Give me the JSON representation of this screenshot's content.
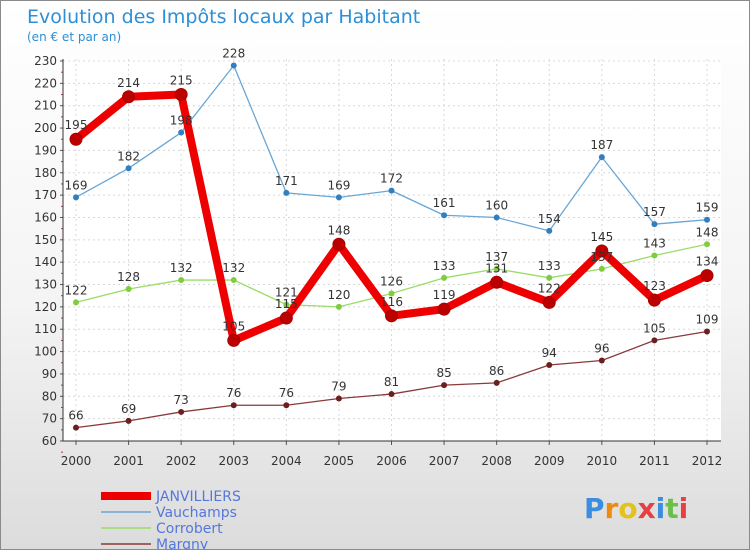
{
  "chart_data": {
    "type": "line",
    "title": "Evolution des Impôts locaux par Habitant",
    "subtitle": "(en € et par an)",
    "xlabel": "",
    "ylabel": "",
    "x": [
      "2000",
      "2001",
      "2002",
      "2003",
      "2004",
      "2005",
      "2006",
      "2007",
      "2008",
      "2009",
      "2010",
      "2011",
      "2012"
    ],
    "ylim": [
      60,
      230
    ],
    "yticks": [
      60,
      70,
      80,
      90,
      100,
      110,
      120,
      130,
      140,
      150,
      160,
      170,
      180,
      190,
      200,
      210,
      220,
      230
    ],
    "grid": true,
    "legend_position": "bottom-left",
    "series": [
      {
        "name": "JANVILLIERS",
        "color": "#ee0000",
        "point_color": "#bb0000",
        "thick": true,
        "values": [
          195,
          214,
          215,
          105,
          115,
          148,
          116,
          119,
          131,
          122,
          145,
          123,
          134
        ]
      },
      {
        "name": "Vauchamps",
        "color": "#6aa6d4",
        "point_color": "#2f7fc1",
        "thick": false,
        "values": [
          169,
          182,
          198,
          228,
          171,
          169,
          172,
          161,
          160,
          154,
          187,
          157,
          159
        ]
      },
      {
        "name": "Corrobert",
        "color": "#99dd66",
        "point_color": "#7fcc3f",
        "thick": false,
        "values": [
          122,
          128,
          132,
          132,
          121,
          120,
          126,
          133,
          137,
          133,
          137,
          143,
          148
        ]
      },
      {
        "name": "Margny",
        "color": "#8a3a3a",
        "point_color": "#6b1f1f",
        "thick": false,
        "values": [
          66,
          69,
          73,
          76,
          76,
          79,
          81,
          85,
          86,
          94,
          96,
          105,
          109
        ]
      }
    ]
  },
  "logo": {
    "letters": [
      "P",
      "r",
      "o",
      "x",
      "i",
      "t",
      "i"
    ],
    "colors": [
      "#3a8de0",
      "#ee8a10",
      "#e3c21c",
      "#e84040",
      "#3a8de0",
      "#6cc04a",
      "#e84040"
    ]
  }
}
